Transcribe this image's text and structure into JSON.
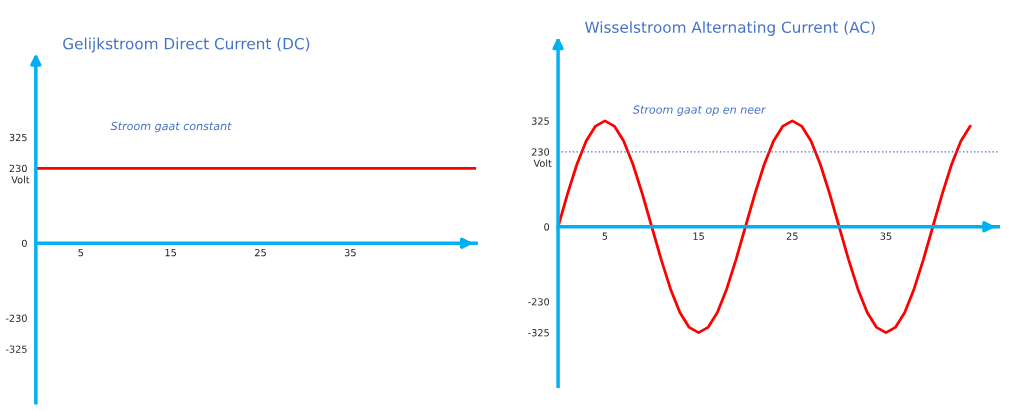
{
  "chart_data": [
    {
      "type": "line",
      "title": "Gelijkstroom Direct Current (DC)",
      "ylabel": "Volt",
      "annotations": [
        "Stroom gaat constant"
      ],
      "x": [
        0,
        49
      ],
      "series": [
        {
          "color": "#ff0000",
          "values": [
            230,
            230
          ]
        }
      ],
      "xlim": [
        0,
        49
      ],
      "xticks": [
        5,
        15,
        25,
        35
      ],
      "ylim": [
        -490,
        570
      ],
      "yticks": [
        -325,
        -230,
        0,
        230,
        325
      ],
      "grid": false,
      "legend": false
    },
    {
      "type": "line",
      "title": "Wisselstroom Alternating Current (AC)",
      "ylabel": "Volt",
      "annotations": [
        "Stroom gaat op en neer"
      ],
      "x": [
        0,
        1,
        2,
        3,
        4,
        5,
        6,
        7,
        8,
        9,
        10,
        11,
        12,
        13,
        14,
        15,
        16,
        17,
        18,
        19,
        20,
        21,
        22,
        23,
        24,
        25,
        26,
        27,
        28,
        29,
        30,
        31,
        32,
        33,
        34,
        35,
        36,
        37,
        38,
        39,
        40,
        41,
        42,
        43,
        44
      ],
      "series": [
        {
          "color": "#ff0000",
          "values": [
            0,
            100,
            191,
            263,
            309,
            325,
            309,
            263,
            191,
            100,
            0,
            -100,
            -191,
            -263,
            -309,
            -325,
            -309,
            -263,
            -191,
            -100,
            0,
            100,
            191,
            263,
            309,
            325,
            309,
            263,
            191,
            100,
            0,
            -100,
            -191,
            -263,
            -309,
            -325,
            -309,
            -263,
            -191,
            -100,
            0,
            100,
            191,
            263,
            309
          ]
        }
      ],
      "ref_lines": [
        {
          "axis": "y",
          "value": 230,
          "color": "#4472c4",
          "line_style": "dotted"
        }
      ],
      "xlim": [
        0,
        47
      ],
      "xticks": [
        5,
        15,
        25,
        35
      ],
      "ylim": [
        -490,
        570
      ],
      "yticks": [
        -325,
        -230,
        0,
        230,
        325
      ],
      "grid": false,
      "legend": false
    }
  ]
}
